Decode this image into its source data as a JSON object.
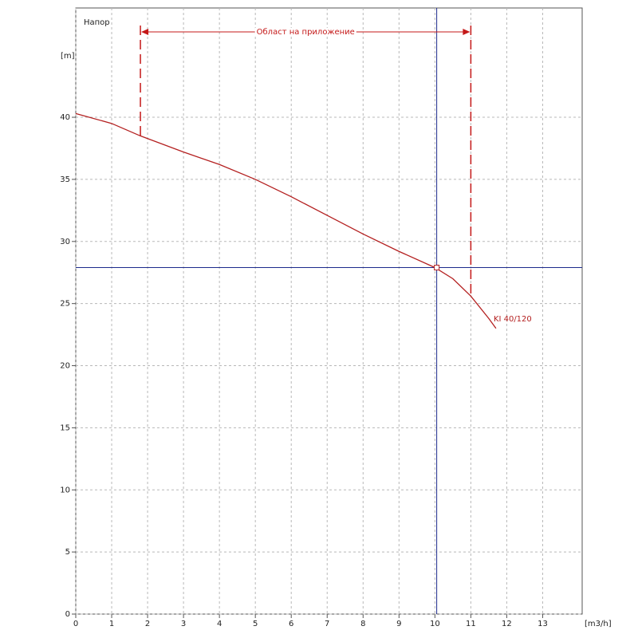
{
  "chart_data": {
    "type": "line",
    "title": "Напор",
    "y_label": "[m]",
    "x_label": "[m3/h]",
    "x": [
      0,
      1,
      1.8,
      3,
      4,
      5,
      6,
      7,
      8,
      9,
      10,
      10.5,
      11,
      11.5,
      11.7
    ],
    "series": [
      {
        "name": "KI 40/120",
        "color": "#b42020",
        "values": [
          40.3,
          39.5,
          38.5,
          37.2,
          36.2,
          35,
          33.6,
          32.1,
          30.6,
          29.2,
          27.9,
          27,
          25.6,
          23.8,
          23
        ]
      }
    ],
    "xlim": [
      0,
      14.1
    ],
    "ylim": [
      0,
      48.8
    ],
    "xticks": [
      0,
      1,
      2,
      3,
      4,
      5,
      6,
      7,
      8,
      9,
      10,
      11,
      12,
      13
    ],
    "yticks": [
      0,
      5,
      10,
      15,
      20,
      25,
      30,
      35,
      40
    ],
    "grid": true,
    "operating_point": {
      "x": 10.05,
      "y": 27.9,
      "color": "#1c2a8c"
    },
    "application_range": {
      "label": "Област на приложение",
      "from": 1.8,
      "to": 11,
      "color": "#c41818"
    }
  }
}
